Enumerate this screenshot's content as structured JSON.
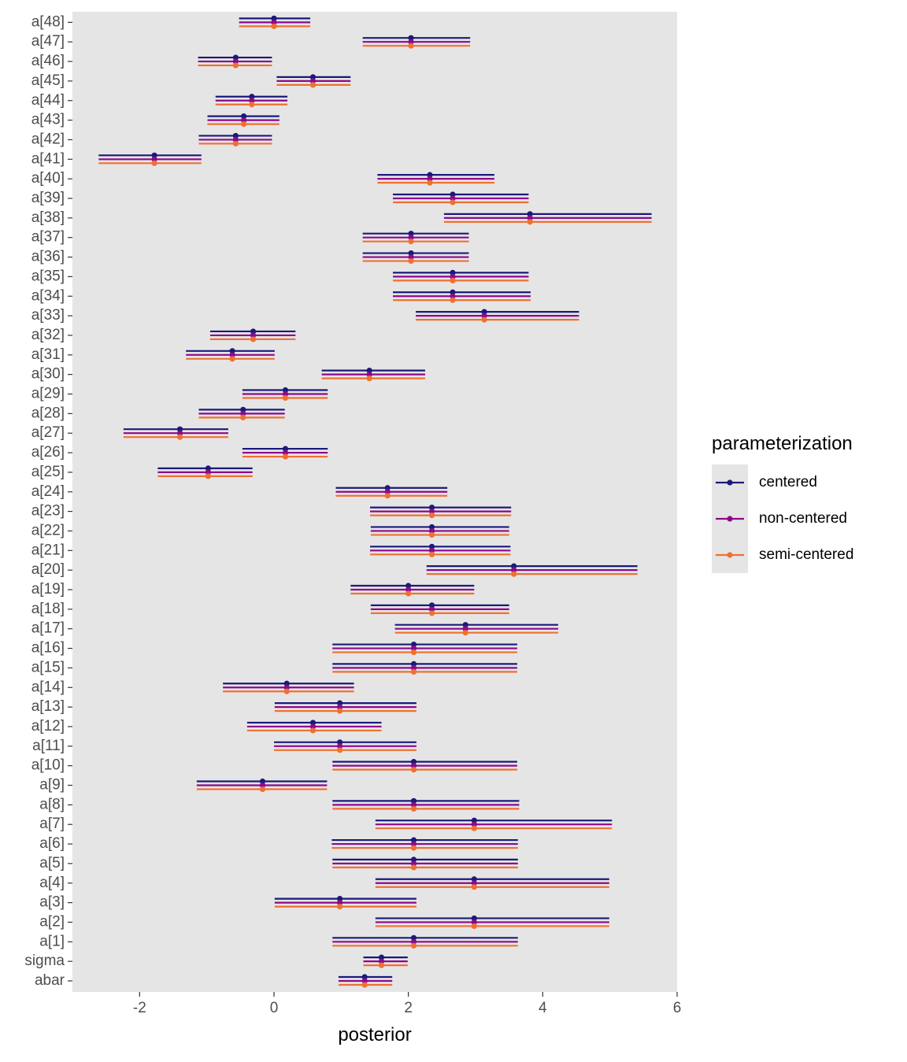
{
  "chart_data": {
    "type": "interval",
    "title": "",
    "xlabel": "posterior",
    "ylabel": "",
    "xlim": [
      -3,
      6
    ],
    "x_ticks": [
      -2,
      0,
      2,
      4,
      6
    ],
    "x_tick_labels": [
      "-2",
      "0",
      "2",
      "4",
      "6"
    ],
    "grid": false,
    "legend": {
      "title": "parameterization",
      "position": "right",
      "entries": [
        "centered",
        "non-centered",
        "semi-centered"
      ]
    },
    "categories": [
      "abar",
      "sigma",
      "a[1]",
      "a[2]",
      "a[3]",
      "a[4]",
      "a[5]",
      "a[6]",
      "a[7]",
      "a[8]",
      "a[9]",
      "a[10]",
      "a[11]",
      "a[12]",
      "a[13]",
      "a[14]",
      "a[15]",
      "a[16]",
      "a[17]",
      "a[18]",
      "a[19]",
      "a[20]",
      "a[21]",
      "a[22]",
      "a[23]",
      "a[24]",
      "a[25]",
      "a[26]",
      "a[27]",
      "a[28]",
      "a[29]",
      "a[30]",
      "a[31]",
      "a[32]",
      "a[33]",
      "a[34]",
      "a[35]",
      "a[36]",
      "a[37]",
      "a[38]",
      "a[39]",
      "a[40]",
      "a[41]",
      "a[42]",
      "a[43]",
      "a[44]",
      "a[45]",
      "a[46]",
      "a[47]",
      "a[48]"
    ],
    "series": [
      {
        "name": "centered",
        "color": "#1a1a7a",
        "mean": [
          1.35,
          1.6,
          2.08,
          2.98,
          0.98,
          2.98,
          2.08,
          2.08,
          2.98,
          2.08,
          -0.17,
          2.08,
          0.98,
          0.58,
          0.98,
          0.19,
          2.08,
          2.08,
          2.85,
          2.35,
          2.0,
          3.57,
          2.35,
          2.35,
          2.35,
          1.69,
          -0.98,
          0.17,
          -1.4,
          -0.46,
          0.17,
          1.42,
          -0.62,
          -0.31,
          3.13,
          2.66,
          2.66,
          2.04,
          2.04,
          3.81,
          2.66,
          2.32,
          -1.78,
          -0.57,
          -0.45,
          -0.33,
          0.58,
          -0.57,
          2.04,
          0.0
        ],
        "lower": [
          0.96,
          1.33,
          0.87,
          1.51,
          0.01,
          1.51,
          0.87,
          0.86,
          1.51,
          0.87,
          -1.15,
          0.87,
          0.0,
          -0.4,
          0.01,
          -0.76,
          0.87,
          0.87,
          1.8,
          1.44,
          1.14,
          2.27,
          1.43,
          1.44,
          1.43,
          0.92,
          -1.73,
          -0.47,
          -2.24,
          -1.12,
          -0.47,
          0.71,
          -1.31,
          -0.95,
          2.11,
          1.77,
          1.77,
          1.32,
          1.32,
          2.53,
          1.77,
          1.54,
          -2.61,
          -1.12,
          -0.99,
          -0.87,
          0.04,
          -1.13,
          1.32,
          -0.52
        ],
        "upper": [
          1.76,
          1.99,
          3.63,
          4.99,
          2.12,
          4.99,
          3.63,
          3.63,
          5.03,
          3.65,
          0.79,
          3.62,
          2.12,
          1.6,
          2.12,
          1.19,
          3.62,
          3.62,
          4.23,
          3.5,
          2.98,
          5.41,
          3.52,
          3.5,
          3.53,
          2.58,
          -0.32,
          0.8,
          -0.68,
          0.16,
          0.8,
          2.25,
          0.01,
          0.32,
          4.54,
          3.82,
          3.79,
          2.9,
          2.9,
          5.62,
          3.79,
          3.28,
          -1.08,
          -0.03,
          0.08,
          0.2,
          1.14,
          -0.03,
          2.92,
          0.54
        ]
      },
      {
        "name": "non-centered",
        "color": "#8b0a8b",
        "mean": [
          1.35,
          1.6,
          2.08,
          2.98,
          0.98,
          2.98,
          2.08,
          2.08,
          2.98,
          2.08,
          -0.17,
          2.08,
          0.98,
          0.58,
          0.98,
          0.19,
          2.08,
          2.08,
          2.85,
          2.35,
          2.0,
          3.57,
          2.35,
          2.35,
          2.35,
          1.69,
          -0.98,
          0.17,
          -1.4,
          -0.46,
          0.17,
          1.42,
          -0.62,
          -0.31,
          3.13,
          2.66,
          2.66,
          2.04,
          2.04,
          3.81,
          2.66,
          2.32,
          -1.78,
          -0.57,
          -0.45,
          -0.33,
          0.58,
          -0.57,
          2.04,
          0.0
        ],
        "lower": [
          0.96,
          1.33,
          0.87,
          1.51,
          0.01,
          1.51,
          0.87,
          0.86,
          1.51,
          0.87,
          -1.15,
          0.87,
          0.0,
          -0.4,
          0.01,
          -0.76,
          0.87,
          0.87,
          1.8,
          1.44,
          1.14,
          2.27,
          1.43,
          1.44,
          1.43,
          0.92,
          -1.73,
          -0.47,
          -2.24,
          -1.12,
          -0.47,
          0.71,
          -1.31,
          -0.95,
          2.11,
          1.77,
          1.77,
          1.32,
          1.32,
          2.53,
          1.77,
          1.54,
          -2.61,
          -1.12,
          -0.99,
          -0.87,
          0.04,
          -1.13,
          1.32,
          -0.52
        ],
        "upper": [
          1.76,
          1.99,
          3.63,
          4.99,
          2.12,
          4.99,
          3.63,
          3.63,
          5.03,
          3.65,
          0.79,
          3.62,
          2.12,
          1.6,
          2.12,
          1.19,
          3.62,
          3.62,
          4.23,
          3.5,
          2.98,
          5.41,
          3.52,
          3.5,
          3.53,
          2.58,
          -0.32,
          0.8,
          -0.68,
          0.16,
          0.8,
          2.25,
          0.01,
          0.32,
          4.54,
          3.82,
          3.79,
          2.9,
          2.9,
          5.62,
          3.79,
          3.28,
          -1.08,
          -0.03,
          0.08,
          0.2,
          1.14,
          -0.03,
          2.92,
          0.54
        ]
      },
      {
        "name": "semi-centered",
        "color": "#f07030",
        "mean": [
          1.35,
          1.6,
          2.08,
          2.98,
          0.98,
          2.98,
          2.08,
          2.08,
          2.98,
          2.08,
          -0.17,
          2.08,
          0.98,
          0.58,
          0.98,
          0.19,
          2.08,
          2.08,
          2.85,
          2.35,
          2.0,
          3.57,
          2.35,
          2.35,
          2.35,
          1.69,
          -0.98,
          0.17,
          -1.4,
          -0.46,
          0.17,
          1.42,
          -0.62,
          -0.31,
          3.13,
          2.66,
          2.66,
          2.04,
          2.04,
          3.81,
          2.66,
          2.32,
          -1.78,
          -0.57,
          -0.45,
          -0.33,
          0.58,
          -0.57,
          2.04,
          0.0
        ],
        "lower": [
          0.96,
          1.33,
          0.87,
          1.51,
          0.01,
          1.51,
          0.87,
          0.86,
          1.51,
          0.87,
          -1.15,
          0.87,
          0.0,
          -0.4,
          0.01,
          -0.76,
          0.87,
          0.87,
          1.8,
          1.44,
          1.14,
          2.27,
          1.43,
          1.44,
          1.43,
          0.92,
          -1.73,
          -0.47,
          -2.24,
          -1.12,
          -0.47,
          0.71,
          -1.31,
          -0.95,
          2.11,
          1.77,
          1.77,
          1.32,
          1.32,
          2.53,
          1.77,
          1.54,
          -2.61,
          -1.12,
          -0.99,
          -0.87,
          0.04,
          -1.13,
          1.32,
          -0.52
        ],
        "upper": [
          1.76,
          1.99,
          3.63,
          4.99,
          2.12,
          4.99,
          3.63,
          3.63,
          5.03,
          3.65,
          0.79,
          3.62,
          2.12,
          1.6,
          2.12,
          1.19,
          3.62,
          3.62,
          4.23,
          3.5,
          2.98,
          5.41,
          3.52,
          3.5,
          3.53,
          2.58,
          -0.32,
          0.8,
          -0.68,
          0.16,
          0.8,
          2.25,
          0.01,
          0.32,
          4.54,
          3.82,
          3.79,
          2.9,
          2.9,
          5.62,
          3.79,
          3.28,
          -1.08,
          -0.03,
          0.08,
          0.2,
          1.14,
          -0.03,
          2.92,
          0.54
        ]
      }
    ]
  },
  "colors": {
    "panel_background": "#e5e5e5",
    "axis_text": "#4d4d4d",
    "axis_title": "#000000",
    "legend_key_background": "#e5e5e5"
  }
}
